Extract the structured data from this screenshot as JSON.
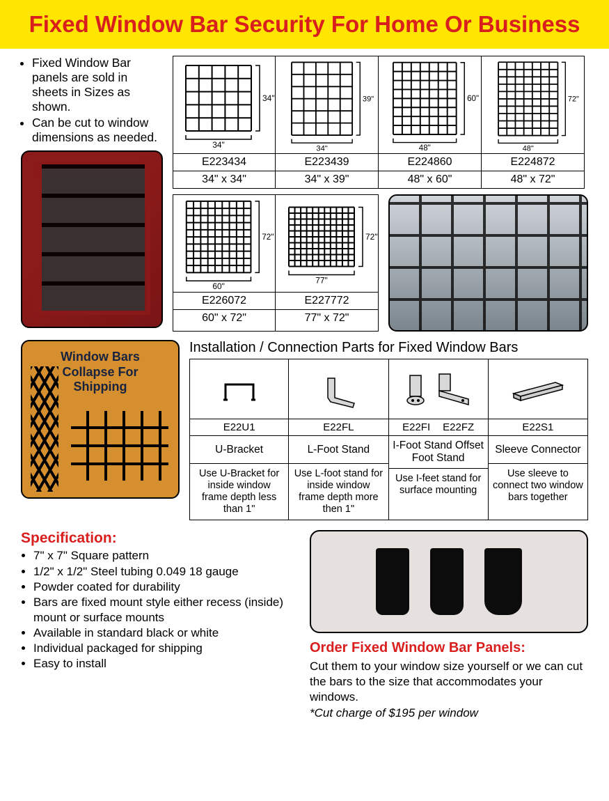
{
  "header": {
    "title": "Fixed Window Bar Security For Home Or Business"
  },
  "intro_bullets": [
    "Fixed Window Bar panels are sold in sheets in Sizes as shown.",
    "Can be cut to window dimensions as needed."
  ],
  "sizes_row1": [
    {
      "sku": "E223434",
      "dim": "34\" x 34\"",
      "w_label": "34\"",
      "h_label": "34\"",
      "rows": 5,
      "cols": 5
    },
    {
      "sku": "E223439",
      "dim": "34\" x 39\"",
      "w_label": "34\"",
      "h_label": "39\"",
      "rows": 6,
      "cols": 5
    },
    {
      "sku": "E224860",
      "dim": "48\" x 60\"",
      "w_label": "48\"",
      "h_label": "60\"",
      "rows": 8,
      "cols": 7
    },
    {
      "sku": "E224872",
      "dim": "48\" x 72\"",
      "w_label": "48\"",
      "h_label": "72\"",
      "rows": 10,
      "cols": 7
    }
  ],
  "sizes_row2": [
    {
      "sku": "E226072",
      "dim": "60\" x 72\"",
      "w_label": "60\"",
      "h_label": "72\"",
      "rows": 10,
      "cols": 9
    },
    {
      "sku": "E227772",
      "dim": "77\" x 72\"",
      "w_label": "77\"",
      "h_label": "72\"",
      "rows": 10,
      "cols": 11
    }
  ],
  "collapse_label_lines": [
    "Window Bars",
    "Collapse For",
    "Shipping"
  ],
  "install_title": "Installation / Connection Parts for Fixed Window Bars",
  "parts": [
    {
      "skus": [
        "E22U1"
      ],
      "name": "U-Bracket",
      "desc": "Use U-Bracket for inside window frame depth less than 1\""
    },
    {
      "skus": [
        "E22FL"
      ],
      "name": "L-Foot Stand",
      "desc": "Use L-foot stand for inside window frame depth more then 1\""
    },
    {
      "skus": [
        "E22FI",
        "E22FZ"
      ],
      "name": "I-Foot Stand Offset Foot Stand",
      "desc": "Use I-feet stand for surface mounting"
    },
    {
      "skus": [
        "E22S1"
      ],
      "name": "Sleeve Connector",
      "desc": "Use sleeve to connect two window bars together"
    }
  ],
  "spec_title": "Specification:",
  "specs": [
    "7\" x 7\" Square pattern",
    "1/2\" x 1/2\" Steel tubing 0.049  18 gauge",
    "Powder coated for durability",
    "Bars are fixed mount style either recess (inside) mount or surface mounts",
    "Available in standard black or white",
    "Individual packaged for shipping",
    "Easy to install"
  ],
  "order_title": "Order Fixed Window Bar Panels:",
  "order_text": "Cut them to your window size yourself or we can cut the bars to the size that accommodates your windows.",
  "order_note": "*Cut charge of $195 per window",
  "colors": {
    "accent_red": "#d91e1e",
    "band_yellow": "#ffe600"
  }
}
